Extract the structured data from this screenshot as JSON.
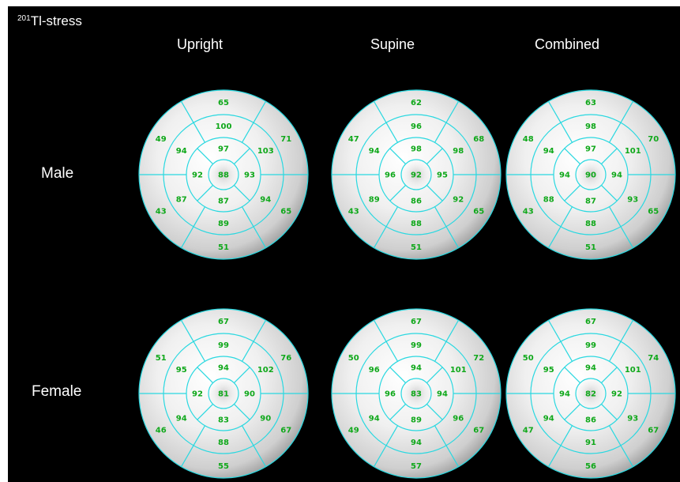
{
  "title": {
    "sup": "201",
    "main": "Tl-stress"
  },
  "columns": [
    "Upright",
    "Supine",
    "Combined"
  ],
  "rows": [
    "Male",
    "Female"
  ],
  "colors": {
    "background": "#000000",
    "grid_lines": "#29d8e0",
    "values": "#0fa81a",
    "text": "#ffffff"
  },
  "polar_maps": [
    {
      "name": "male-upright",
      "outer": [
        65,
        71,
        65,
        51,
        43,
        49
      ],
      "mid": [
        100,
        103,
        94,
        89,
        87,
        94
      ],
      "inner": [
        97,
        93,
        87,
        92
      ],
      "apex": 88
    },
    {
      "name": "male-supine",
      "outer": [
        62,
        68,
        65,
        51,
        43,
        47
      ],
      "mid": [
        96,
        98,
        92,
        88,
        89,
        94
      ],
      "inner": [
        98,
        95,
        86,
        96
      ],
      "apex": 92
    },
    {
      "name": "male-combined",
      "outer": [
        63,
        70,
        65,
        51,
        43,
        48
      ],
      "mid": [
        98,
        101,
        93,
        88,
        88,
        94
      ],
      "inner": [
        97,
        94,
        87,
        94
      ],
      "apex": 90
    },
    {
      "name": "female-upright",
      "outer": [
        67,
        76,
        67,
        55,
        46,
        51
      ],
      "mid": [
        99,
        102,
        90,
        88,
        94,
        95
      ],
      "inner": [
        94,
        90,
        83,
        92
      ],
      "apex": 81
    },
    {
      "name": "female-supine",
      "outer": [
        67,
        72,
        67,
        57,
        49,
        50
      ],
      "mid": [
        99,
        101,
        96,
        94,
        94,
        96
      ],
      "inner": [
        94,
        94,
        89,
        96
      ],
      "apex": 83
    },
    {
      "name": "female-combined",
      "outer": [
        67,
        74,
        67,
        56,
        47,
        50
      ],
      "mid": [
        99,
        101,
        93,
        91,
        94,
        95
      ],
      "inner": [
        94,
        92,
        86,
        94
      ],
      "apex": 82
    }
  ]
}
